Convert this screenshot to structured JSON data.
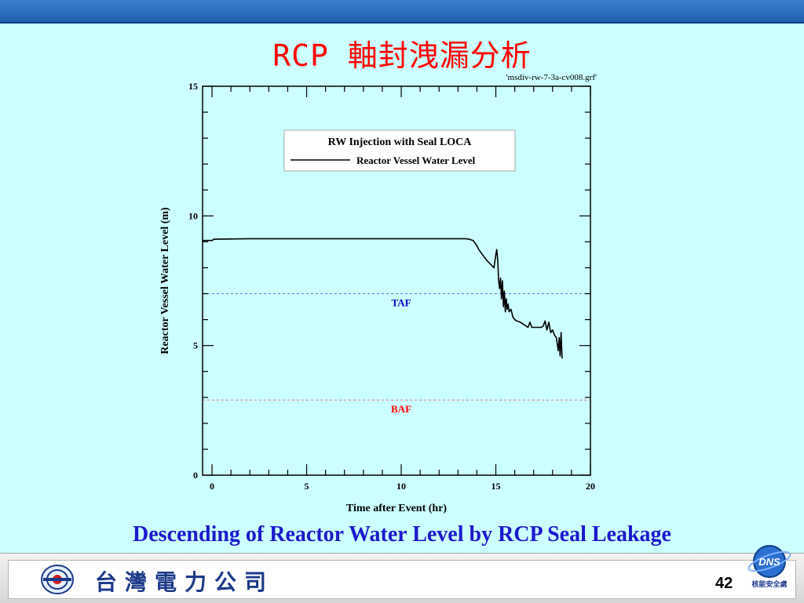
{
  "slide": {
    "title": "RCP 軸封洩漏分析",
    "file_label": "'msdiv-rw-7-3a-cv008.grf'",
    "caption": "Descending of Reactor Water Level by RCP Seal Leakage",
    "page_number": "42",
    "company_name": "台灣電力公司",
    "dns_logo_text": "DNS",
    "dns_tagline": "核能安全處"
  },
  "colors": {
    "background": "#ccffff",
    "title": "#ff0000",
    "caption": "#1a1acc",
    "taf": "#0000cc",
    "baf": "#ff0000"
  },
  "chart_data": {
    "type": "line",
    "xlabel": "Time after Event (hr)",
    "ylabel": "Reactor Vessel Water Level (m)",
    "xlim": [
      -0.5,
      20
    ],
    "ylim": [
      0,
      15
    ],
    "xticks": [
      0,
      5,
      10,
      15,
      20
    ],
    "yticks": [
      0,
      5,
      10,
      15
    ],
    "legend": {
      "title": "RW Injection with Seal LOCA",
      "entry": "Reactor Vessel Water Level",
      "placement": "top-center"
    },
    "reference_lines": [
      {
        "label": "TAF",
        "y": 7.0,
        "color": "#0000cc"
      },
      {
        "label": "BAF",
        "y": 2.9,
        "color": "#ff0000"
      }
    ],
    "series": [
      {
        "name": "Reactor Vessel Water Level",
        "x": [
          -0.5,
          0.0,
          0.1,
          2,
          4,
          6,
          8,
          10,
          12,
          13.0,
          13.4,
          13.6,
          13.8,
          13.9,
          14.0,
          14.1,
          14.3,
          14.5,
          14.7,
          14.9,
          15.0,
          15.05,
          15.1,
          15.15,
          15.2,
          15.25,
          15.3,
          15.35,
          15.4,
          15.45,
          15.5,
          15.55,
          15.6,
          15.65,
          15.7,
          15.8,
          15.9,
          16.0,
          16.1,
          16.3,
          16.5,
          16.7,
          16.8,
          16.9,
          17.0,
          17.2,
          17.4,
          17.5,
          17.6,
          17.7,
          17.8,
          17.9,
          18.0,
          18.1,
          18.2,
          18.3,
          18.35,
          18.4,
          18.45,
          18.5
        ],
        "y": [
          9.05,
          9.05,
          9.1,
          9.12,
          9.12,
          9.12,
          9.12,
          9.12,
          9.12,
          9.12,
          9.12,
          9.1,
          9.05,
          8.95,
          8.85,
          8.7,
          8.5,
          8.3,
          8.15,
          8.0,
          8.5,
          8.7,
          8.3,
          7.5,
          7.2,
          7.6,
          6.8,
          7.5,
          6.5,
          7.1,
          6.3,
          6.8,
          6.4,
          6.6,
          6.3,
          6.4,
          6.1,
          6.0,
          5.95,
          5.9,
          5.8,
          5.7,
          5.9,
          5.7,
          5.7,
          5.7,
          5.7,
          5.75,
          5.95,
          5.6,
          5.9,
          5.5,
          5.6,
          5.4,
          5.3,
          4.8,
          5.3,
          4.6,
          5.5,
          4.5
        ]
      }
    ]
  }
}
